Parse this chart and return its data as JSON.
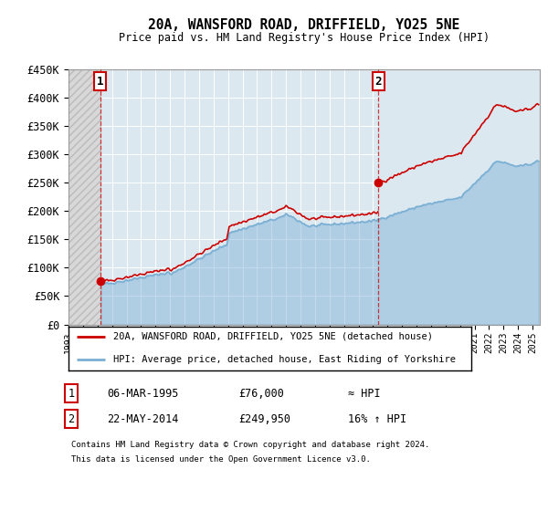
{
  "title": "20A, WANSFORD ROAD, DRIFFIELD, YO25 5NE",
  "subtitle": "Price paid vs. HM Land Registry's House Price Index (HPI)",
  "xmin": 1993.0,
  "xmax": 2025.5,
  "ymin": 0,
  "ymax": 450000,
  "yticks": [
    0,
    50000,
    100000,
    150000,
    200000,
    250000,
    300000,
    350000,
    400000,
    450000
  ],
  "ytick_labels": [
    "£0",
    "£50K",
    "£100K",
    "£150K",
    "£200K",
    "£250K",
    "£300K",
    "£350K",
    "£400K",
    "£450K"
  ],
  "sale1_year": 1995.18,
  "sale1_price": 76000,
  "sale2_year": 2014.38,
  "sale2_price": 249950,
  "red_line_color": "#cc0000",
  "blue_line_color": "#7aafd4",
  "sale_marker_color": "#cc0000",
  "legend_line1": "20A, WANSFORD ROAD, DRIFFIELD, YO25 5NE (detached house)",
  "legend_line2": "HPI: Average price, detached house, East Riding of Yorkshire",
  "table_row1": [
    "1",
    "06-MAR-1995",
    "£76,000",
    "≈ HPI"
  ],
  "table_row2": [
    "2",
    "22-MAY-2014",
    "£249,950",
    "16% ↑ HPI"
  ],
  "footnote1": "Contains HM Land Registry data © Crown copyright and database right 2024.",
  "footnote2": "This data is licensed under the Open Government Licence v3.0.",
  "background_color": "#ffffff",
  "plot_bg_color": "#dce8f0",
  "hatch_bg_color": "#d8d8d8"
}
